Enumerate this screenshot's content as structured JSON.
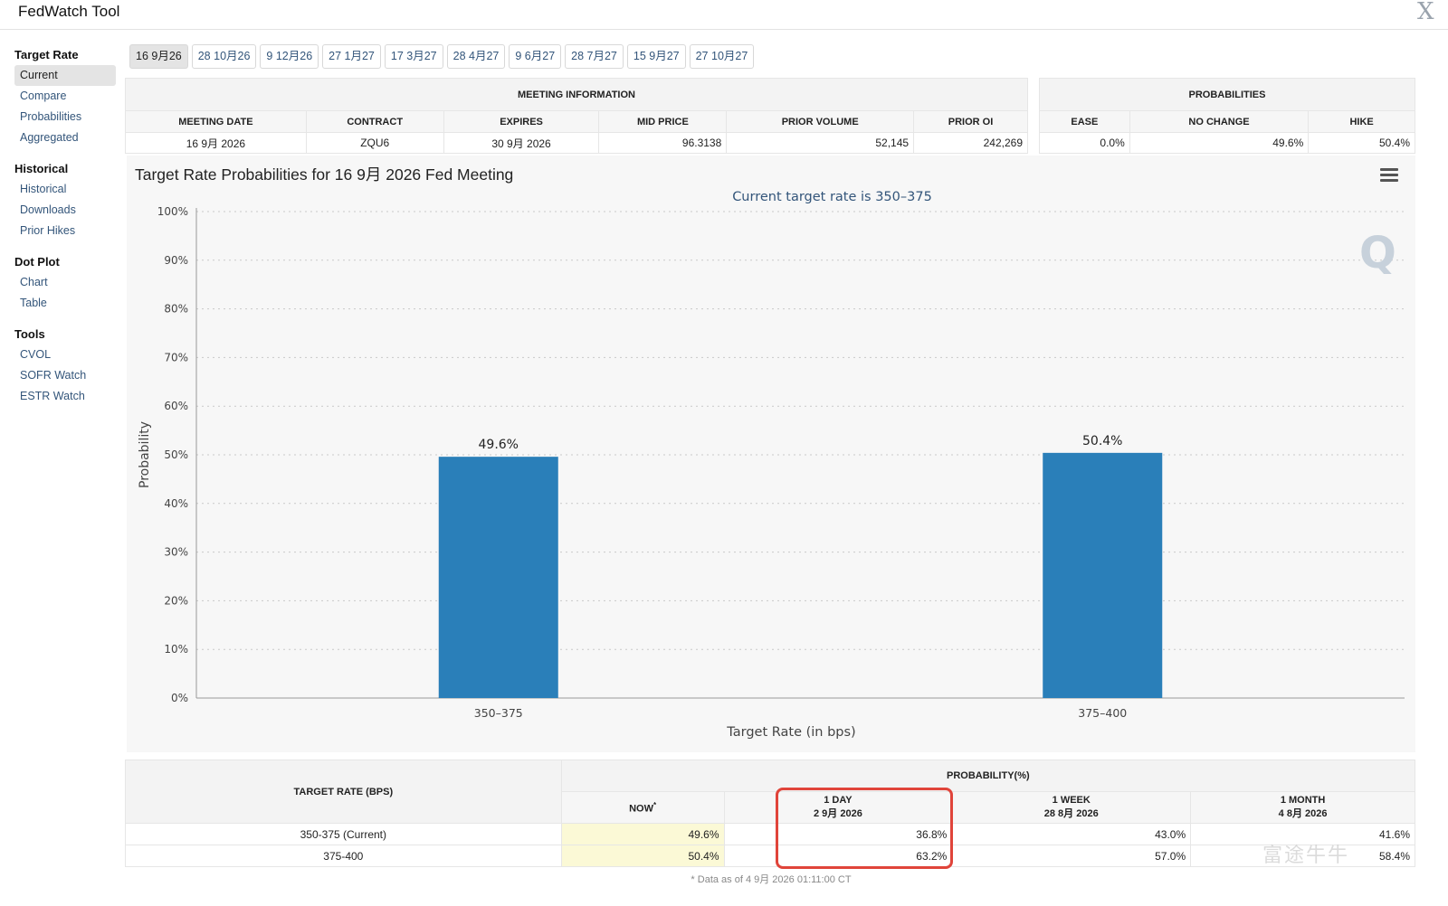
{
  "app": {
    "title": "FedWatch Tool",
    "close_icon": "close-icon"
  },
  "sidebar": {
    "sections": [
      {
        "title": "Target Rate",
        "items": [
          "Current",
          "Compare",
          "Probabilities",
          "Aggregated"
        ]
      },
      {
        "title": "Historical",
        "items": [
          "Historical",
          "Downloads",
          "Prior Hikes"
        ]
      },
      {
        "title": "Dot Plot",
        "items": [
          "Chart",
          "Table"
        ]
      },
      {
        "title": "Tools",
        "items": [
          "CVOL",
          "SOFR Watch",
          "ESTR Watch"
        ]
      }
    ],
    "active_item": "Current"
  },
  "tabs": [
    "16 9月26",
    "28 10月26",
    "9 12月26",
    "27 1月27",
    "17 3月27",
    "28 4月27",
    "9 6月27",
    "28 7月27",
    "15 9月27",
    "27 10月27"
  ],
  "meeting_info": {
    "title": "MEETING INFORMATION",
    "headers": [
      "MEETING DATE",
      "CONTRACT",
      "EXPIRES",
      "MID PRICE",
      "PRIOR VOLUME",
      "PRIOR OI"
    ],
    "values": [
      "16 9月 2026",
      "ZQU6",
      "30 9月 2026",
      "96.3138",
      "52,145",
      "242,269"
    ]
  },
  "probabilities": {
    "title": "PROBABILITIES",
    "headers": [
      "EASE",
      "NO CHANGE",
      "HIKE"
    ],
    "values": [
      "0.0%",
      "49.6%",
      "50.4%"
    ]
  },
  "chart": {
    "title": "Target Rate Probabilities for 16 9月 2026 Fed Meeting",
    "subtitle": "Current target rate is 350–375",
    "menu_icon": "hamburger-menu-icon",
    "logo_text": "Q"
  },
  "chart_data": {
    "type": "bar",
    "title": "Target Rate Probabilities for 16 9月 2026 Fed Meeting",
    "subtitle": "Current target rate is 350–375",
    "categories": [
      "350–375",
      "375–400"
    ],
    "values": [
      49.6,
      50.4
    ],
    "data_labels": [
      "49.6%",
      "50.4%"
    ],
    "xlabel": "Target Rate (in bps)",
    "ylabel": "Probability",
    "ylim": [
      0,
      100
    ],
    "yticks": [
      "0%",
      "10%",
      "20%",
      "30%",
      "40%",
      "50%",
      "60%",
      "70%",
      "80%",
      "90%",
      "100%"
    ],
    "grid": true,
    "color": "#2a7fb9"
  },
  "prob_table": {
    "group_header": "PROBABILITY(%)",
    "row_header": "TARGET RATE (BPS)",
    "columns": [
      {
        "label": "NOW",
        "sup": "*",
        "date": ""
      },
      {
        "label": "1 DAY",
        "sup": "",
        "date": "2 9月 2026"
      },
      {
        "label": "1 WEEK",
        "sup": "",
        "date": "28 8月 2026"
      },
      {
        "label": "1 MONTH",
        "sup": "",
        "date": "4 8月 2026"
      }
    ],
    "rows": [
      {
        "rate": "350-375 (Current)",
        "values": [
          "49.6%",
          "36.8%",
          "43.0%",
          "41.6%"
        ]
      },
      {
        "rate": "375-400",
        "values": [
          "50.4%",
          "63.2%",
          "57.0%",
          "58.4%"
        ]
      }
    ],
    "footnote": "* Data as of 4 9月 2026 01:11:00 CT"
  },
  "watermark": "富途牛牛",
  "colors": {
    "bar": "#2a7fb9",
    "highlight_box": "#e0443a",
    "now_cell": "#fbf9d6",
    "link": "#33557a"
  }
}
